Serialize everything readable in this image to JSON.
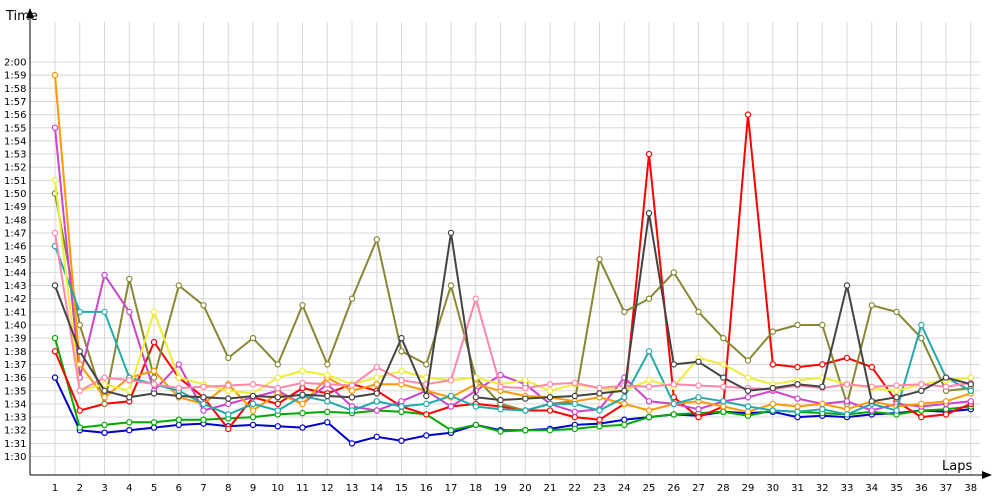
{
  "chart_data": {
    "type": "line",
    "xlabel": "Laps",
    "ylabel": "Time",
    "x": [
      1,
      2,
      3,
      4,
      5,
      6,
      7,
      8,
      9,
      10,
      11,
      12,
      13,
      14,
      15,
      16,
      17,
      18,
      19,
      20,
      21,
      22,
      23,
      24,
      25,
      26,
      27,
      28,
      29,
      30,
      31,
      32,
      33,
      34,
      35,
      36,
      37,
      38
    ],
    "xlim": [
      1,
      38
    ],
    "ylim_seconds": [
      85,
      125
    ],
    "y_ticks": [
      "1:30",
      "1:31",
      "1:32",
      "1:33",
      "1:34",
      "1:35",
      "1:36",
      "1:37",
      "1:38",
      "1:39",
      "1:40",
      "1:41",
      "1:42",
      "1:43",
      "1:44",
      "1:45",
      "1:46",
      "1:47",
      "1:48",
      "1:49",
      "1:50",
      "1:51",
      "1:52",
      "1:53",
      "1:54",
      "1:55",
      "1:56",
      "1:57",
      "1:58",
      "1:59",
      "2:00"
    ],
    "grid": true,
    "series": [
      {
        "color": "#0000cc",
        "values": [
          96,
          92,
          91.8,
          92,
          92.2,
          92.4,
          92.5,
          92.3,
          92.4,
          92.3,
          92.2,
          92.6,
          91,
          91.5,
          91.2,
          91.6,
          91.8,
          92.4,
          92,
          92,
          92.1,
          92.4,
          92.5,
          92.8,
          93,
          93.2,
          93.1,
          93.4,
          93.3,
          93.4,
          93,
          93.1,
          93,
          93.2,
          93.3,
          93.5,
          93.4,
          93.6
        ]
      },
      {
        "color": "#00aa00",
        "values": [
          99,
          92.2,
          92.4,
          92.6,
          92.6,
          92.8,
          92.8,
          92.9,
          93,
          93.2,
          93.3,
          93.4,
          93.3,
          93.5,
          93.4,
          93.2,
          92,
          92.4,
          91.9,
          92,
          92,
          92.1,
          92.3,
          92.4,
          93,
          93.2,
          93.3,
          93.4,
          93.1,
          93.5,
          93.4,
          93.3,
          93.2,
          93.4,
          93.2,
          93.5,
          93.6,
          93.8
        ]
      },
      {
        "color": "#ff0000",
        "values": [
          98,
          93.5,
          94,
          94.2,
          98.7,
          96,
          94.5,
          92.1,
          94.5,
          94,
          95.2,
          94.8,
          95.5,
          95,
          93.8,
          93.2,
          93.8,
          94,
          93.8,
          93.5,
          93.5,
          93,
          92.8,
          94,
          113,
          94.5,
          93,
          93.8,
          116,
          97,
          96.8,
          97,
          97.5,
          96.8,
          94.2,
          93,
          93.2,
          94
        ]
      },
      {
        "color": "#888833",
        "values": [
          110,
          100,
          94,
          103.5,
          96,
          103,
          101.5,
          97.5,
          99,
          97,
          101.5,
          97,
          102,
          106.5,
          98,
          97,
          103,
          96,
          94,
          93.5,
          94,
          94.2,
          105,
          101,
          102,
          104,
          101,
          99,
          97.3,
          99.5,
          100,
          100,
          94,
          101.5,
          101,
          99,
          95,
          95.2
        ]
      },
      {
        "color": "#cc44cc",
        "values": [
          115,
          96,
          103.8,
          101,
          95,
          97,
          93.5,
          94,
          94.5,
          95,
          94,
          95.5,
          93.8,
          93.5,
          94.2,
          95,
          93.8,
          95,
          96.2,
          95.5,
          94,
          93.4,
          93.6,
          96,
          94.2,
          94,
          93.6,
          94.2,
          94.5,
          95,
          94.4,
          94,
          94.2,
          93.5,
          94,
          93.8,
          94,
          94.2
        ]
      },
      {
        "color": "#ff9900",
        "values": [
          119,
          97,
          94.5,
          96,
          96.5,
          94.5,
          94,
          95.5,
          93.5,
          94.8,
          94,
          96,
          95,
          95.5,
          95.5,
          95,
          94.5,
          95.5,
          95,
          94.6,
          94.5,
          94.2,
          94.5,
          94,
          93.5,
          94,
          94.2,
          93.8,
          93.4,
          94,
          93.8,
          94,
          93.6,
          94.2,
          93.8,
          94,
          94.2,
          94.8
        ]
      },
      {
        "color": "#22aaaa",
        "values": [
          106,
          101,
          101,
          96,
          95.5,
          95,
          94,
          93.2,
          94,
          93.5,
          94.6,
          94.2,
          93.5,
          94.2,
          93.8,
          94,
          94.6,
          93.8,
          93.6,
          93.5,
          94,
          94,
          93.5,
          94.5,
          98,
          94,
          94.5,
          94.2,
          93.8,
          93.5,
          93.4,
          93.6,
          93.2,
          94,
          93.5,
          100,
          96,
          95
        ]
      },
      {
        "color": "#eeee33",
        "values": [
          111,
          95,
          95.5,
          95,
          101,
          96,
          95.5,
          95,
          94.8,
          96,
          96.5,
          96.2,
          95.5,
          96,
          96.5,
          96,
          95.8,
          96,
          95.5,
          95.8,
          95,
          95.5,
          95.2,
          95,
          95.8,
          95.3,
          97.5,
          97,
          96,
          95.5,
          95.8,
          96,
          95.5,
          95.2,
          95,
          95.5,
          95.8,
          96
        ]
      },
      {
        "color": "#ff88aa",
        "values": [
          107,
          95,
          96,
          95.8,
          95.5,
          95.2,
          95.3,
          95.4,
          95.5,
          95.2,
          95.6,
          95.5,
          95.4,
          96.8,
          95.8,
          95.5,
          95.8,
          102,
          95.3,
          95.2,
          95.5,
          95.6,
          95.2,
          95.4,
          95.3,
          95.5,
          95.4,
          95.3,
          95.2,
          95.1,
          95.4,
          95.2,
          95.5,
          95.3,
          95.4,
          95.5,
          95.3,
          95.6
        ]
      },
      {
        "color": "#444444",
        "values": [
          103,
          98,
          95,
          94.5,
          94.8,
          94.6,
          94.5,
          94.4,
          94.6,
          94.5,
          94.7,
          94.6,
          94.5,
          94.8,
          99,
          94.6,
          107,
          94.5,
          94.3,
          94.4,
          94.5,
          94.6,
          94.8,
          95,
          108.5,
          97,
          97.2,
          96,
          95,
          95.2,
          95.5,
          95.3,
          103,
          94.2,
          94.5,
          95,
          96,
          95.5
        ]
      }
    ]
  }
}
